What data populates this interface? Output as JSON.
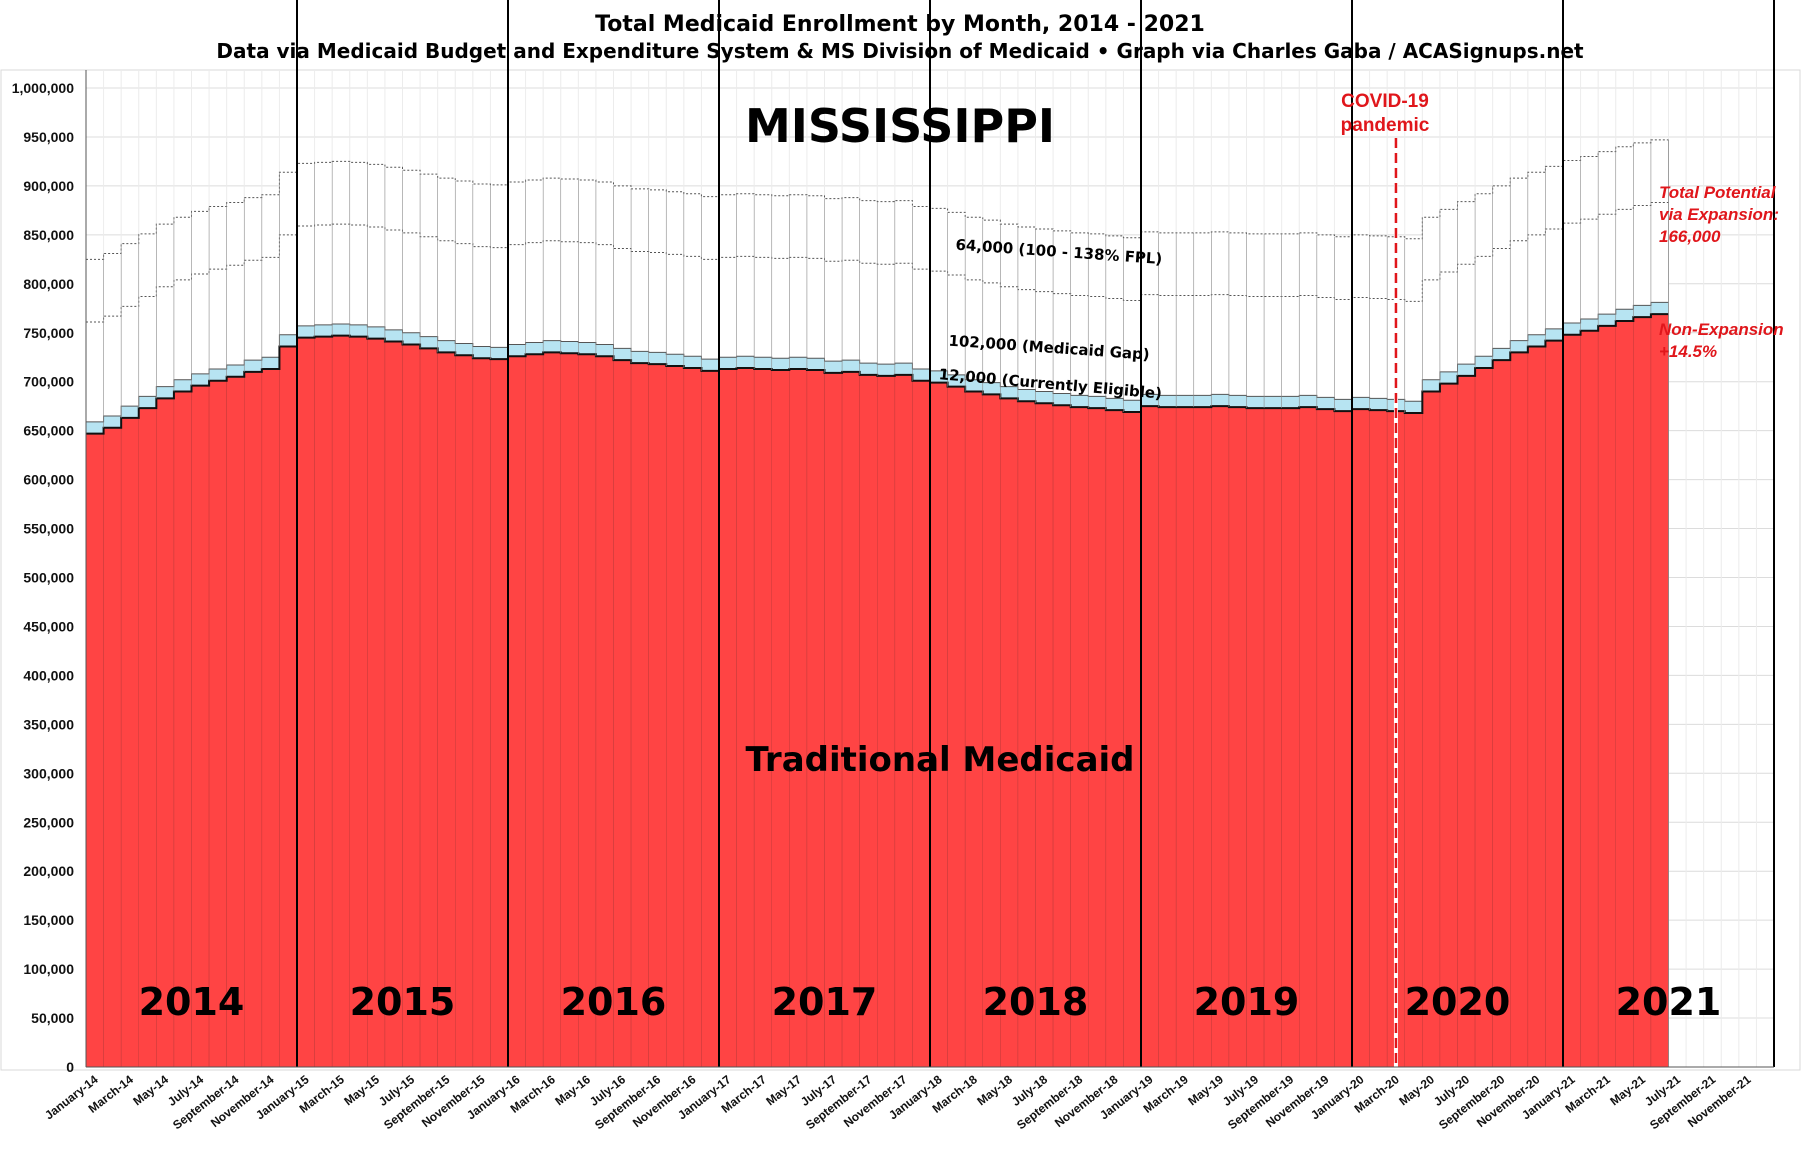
{
  "chart_data": {
    "type": "area",
    "title": "Total Medicaid Enrollment by Month, 2014 - 2021",
    "subtitle": "Data via Medicaid Budget and Expenditure System & MS Division of Medicaid  •  Graph via Charles Gaba / ACASignups.net",
    "state_label": "MISSISSIPPI",
    "ylim": [
      0,
      1000000
    ],
    "y_ticks": [
      "0",
      "50,000",
      "100,000",
      "150,000",
      "200,000",
      "250,000",
      "300,000",
      "350,000",
      "400,000",
      "450,000",
      "500,000",
      "550,000",
      "600,000",
      "650,000",
      "700,000",
      "750,000",
      "800,000",
      "850,000",
      "900,000",
      "950,000",
      "1,000,000"
    ],
    "x_tick_labels": [
      "January-14",
      "March-14",
      "May-14",
      "July-14",
      "September-14",
      "November-14",
      "January-15",
      "March-15",
      "May-15",
      "July-15",
      "September-15",
      "November-15",
      "January-16",
      "March-16",
      "May-16",
      "July-16",
      "September-16",
      "November-16",
      "January-17",
      "March-17",
      "May-17",
      "July-17",
      "September-17",
      "November-17",
      "January-18",
      "March-18",
      "May-18",
      "July-18",
      "September-18",
      "November-18",
      "January-19",
      "March-19",
      "May-19",
      "July-19",
      "September-19",
      "November-19",
      "January-20",
      "March-20",
      "May-20",
      "July-20",
      "September-20",
      "November-20",
      "January-21",
      "March-21",
      "May-21",
      "July-21",
      "September-21",
      "November-21"
    ],
    "years": [
      "2014",
      "2015",
      "2016",
      "2017",
      "2018",
      "2019",
      "2020",
      "2021"
    ],
    "months_axis_total": 96,
    "traditional": [
      647000,
      653000,
      663000,
      673000,
      683000,
      690000,
      696000,
      701000,
      705000,
      710000,
      713000,
      736000,
      745000,
      746000,
      747000,
      746000,
      744000,
      741000,
      738000,
      734000,
      730000,
      727000,
      724000,
      723000,
      726000,
      728000,
      730000,
      729000,
      728000,
      726000,
      722000,
      719000,
      718000,
      716000,
      714000,
      711000,
      713000,
      714000,
      713000,
      712000,
      713000,
      712000,
      709000,
      710000,
      707000,
      706000,
      707000,
      701000,
      699000,
      695000,
      690000,
      687000,
      683000,
      680000,
      678000,
      676000,
      674000,
      673000,
      671000,
      669000,
      675000,
      674000,
      674000,
      674000,
      675000,
      674000,
      673000,
      673000,
      673000,
      674000,
      672000,
      670000,
      672000,
      671000,
      670000,
      668000,
      690000,
      698000,
      706000,
      714000,
      722000,
      730000,
      736000,
      742000,
      748000,
      752000,
      757000,
      762000,
      766000,
      769000
    ],
    "currently_eligible": [
      12000,
      12000,
      12000,
      12000,
      12000,
      12000,
      12000,
      12000,
      12000,
      12000,
      12000,
      12000,
      12000,
      12000,
      12000,
      12000,
      12000,
      12000,
      12000,
      12000,
      12000,
      12000,
      12000,
      12000,
      12000,
      12000,
      12000,
      12000,
      12000,
      12000,
      12000,
      12000,
      12000,
      12000,
      12000,
      12000,
      12000,
      12000,
      12000,
      12000,
      12000,
      12000,
      12000,
      12000,
      12000,
      12000,
      12000,
      12000,
      12000,
      12000,
      12000,
      12000,
      12000,
      12000,
      12000,
      12000,
      12000,
      12000,
      12000,
      12000,
      12000,
      12000,
      12000,
      12000,
      12000,
      12000,
      12000,
      12000,
      12000,
      12000,
      12000,
      12000,
      12000,
      12000,
      12000,
      12000,
      12000,
      12000,
      12000,
      12000,
      12000,
      12000,
      12000,
      12000,
      12000,
      12000,
      12000,
      12000,
      12000,
      12000
    ],
    "medicaid_gap": [
      102000,
      102000,
      102000,
      102000,
      102000,
      102000,
      102000,
      102000,
      102000,
      102000,
      102000,
      102000,
      102000,
      102000,
      102000,
      102000,
      102000,
      102000,
      102000,
      102000,
      102000,
      102000,
      102000,
      102000,
      102000,
      102000,
      102000,
      102000,
      102000,
      102000,
      102000,
      102000,
      102000,
      102000,
      102000,
      102000,
      102000,
      102000,
      102000,
      102000,
      102000,
      102000,
      102000,
      102000,
      102000,
      102000,
      102000,
      102000,
      102000,
      102000,
      102000,
      102000,
      102000,
      102000,
      102000,
      102000,
      102000,
      102000,
      102000,
      102000,
      102000,
      102000,
      102000,
      102000,
      102000,
      102000,
      102000,
      102000,
      102000,
      102000,
      102000,
      102000,
      102000,
      102000,
      102000,
      102000,
      102000,
      102000,
      102000,
      102000,
      102000,
      102000,
      102000,
      102000,
      102000,
      102000,
      102000,
      102000,
      102000,
      102000
    ],
    "fpl_100_138": [
      64000,
      64000,
      64000,
      64000,
      64000,
      64000,
      64000,
      64000,
      64000,
      64000,
      64000,
      64000,
      64000,
      64000,
      64000,
      64000,
      64000,
      64000,
      64000,
      64000,
      64000,
      64000,
      64000,
      64000,
      64000,
      64000,
      64000,
      64000,
      64000,
      64000,
      64000,
      64000,
      64000,
      64000,
      64000,
      64000,
      64000,
      64000,
      64000,
      64000,
      64000,
      64000,
      64000,
      64000,
      64000,
      64000,
      64000,
      64000,
      64000,
      64000,
      64000,
      64000,
      64000,
      64000,
      64000,
      64000,
      64000,
      64000,
      64000,
      64000,
      64000,
      64000,
      64000,
      64000,
      64000,
      64000,
      64000,
      64000,
      64000,
      64000,
      64000,
      64000,
      64000,
      64000,
      64000,
      64000,
      64000,
      64000,
      64000,
      64000,
      64000,
      64000,
      64000,
      64000,
      64000,
      64000,
      64000,
      64000,
      64000,
      64000
    ],
    "series_labels": {
      "traditional": "Traditional Medicaid",
      "currently_eligible": "12,000 (Currently Eligible)",
      "medicaid_gap": "102,000 (Medicaid Gap)",
      "fpl": "64,000 (100 - 138% FPL)"
    },
    "annotations": {
      "covid_line1": "COVID-19",
      "covid_line2": "pandemic",
      "covid_month_index": 74,
      "total_potential_1": "Total Potential",
      "total_potential_2": "via Expansion:",
      "total_potential_3": "166,000",
      "non_expansion_1": "Non-Expansion",
      "non_expansion_2": "+14.5%"
    },
    "colors": {
      "traditional": "#ff4444",
      "currently_eligible": "#b7e4f2",
      "gap_fill": "#ffffff",
      "covid": "#e0161b",
      "note": "#e0161b"
    }
  }
}
